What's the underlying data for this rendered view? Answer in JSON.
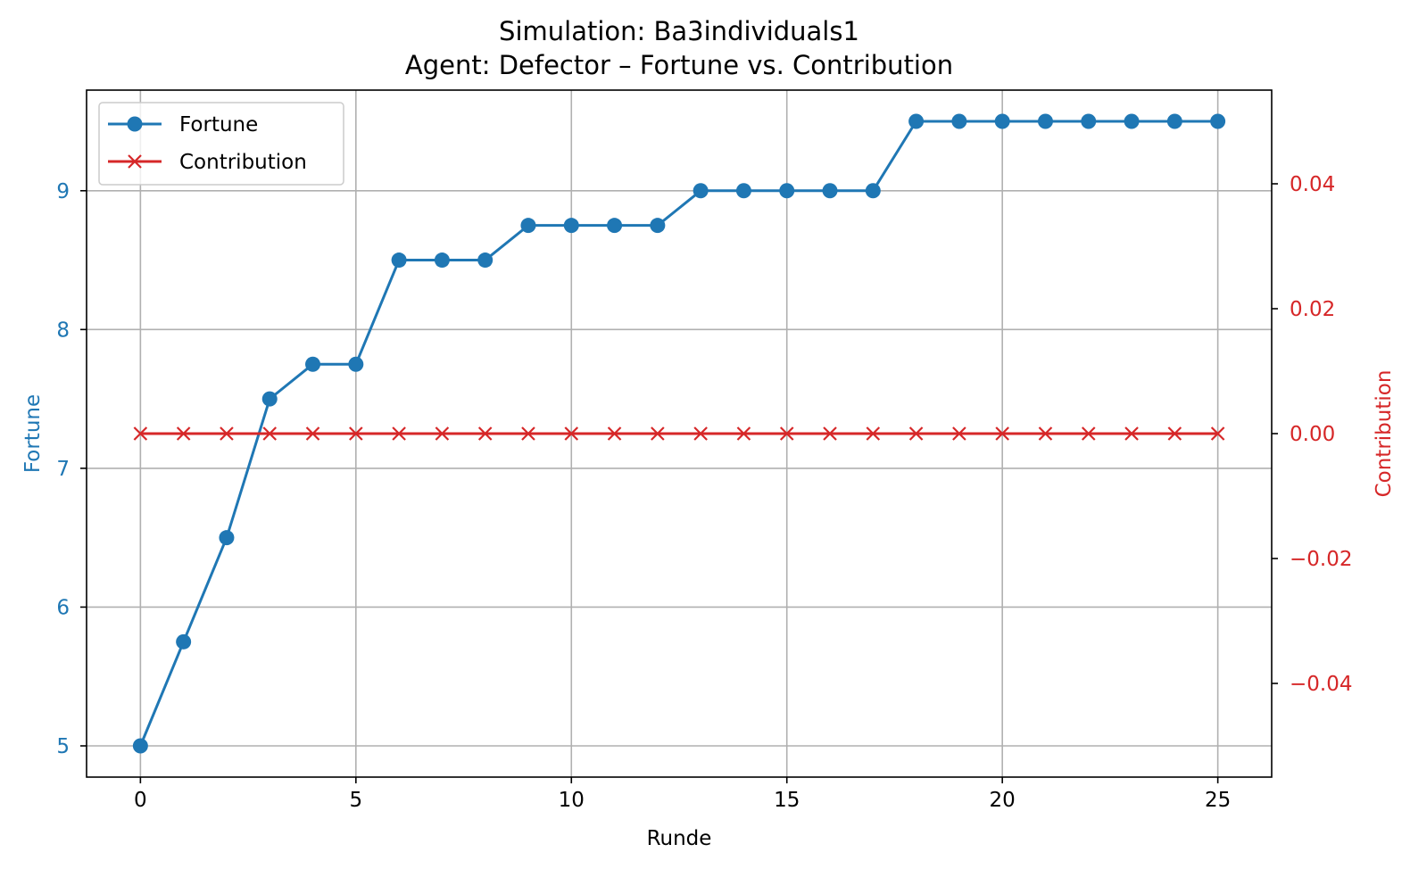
{
  "colors": {
    "fortune": "#1f77b4",
    "contribution": "#d62728",
    "grid": "#b0b0b0",
    "axis": "#000000"
  },
  "chart_data": {
    "type": "line",
    "title": "Simulation: Ba3individuals1",
    "subtitle": "Agent: Defector – Fortune vs. Contribution",
    "xlabel": "Runde",
    "ylabel_left": "Fortune",
    "ylabel_right": "Contribution",
    "xlim": [
      -1.25,
      26.25
    ],
    "ylim_left": [
      4.775,
      9.725
    ],
    "ylim_right": [
      -0.055,
      0.055
    ],
    "x_ticks": [
      0,
      5,
      10,
      15,
      20,
      25
    ],
    "x_tick_labels": [
      "0",
      "5",
      "10",
      "15",
      "20",
      "25"
    ],
    "y_left_ticks": [
      5,
      6,
      7,
      8,
      9
    ],
    "y_left_tick_labels": [
      "5",
      "6",
      "7",
      "8",
      "9"
    ],
    "y_right_ticks": [
      -0.04,
      -0.02,
      0.0,
      0.02,
      0.04
    ],
    "y_right_tick_labels": [
      "−0.04",
      "−0.02",
      "0.00",
      "0.02",
      "0.04"
    ],
    "grid": true,
    "legend_position": "top-left",
    "x": [
      0,
      1,
      2,
      3,
      4,
      5,
      6,
      7,
      8,
      9,
      10,
      11,
      12,
      13,
      14,
      15,
      16,
      17,
      18,
      19,
      20,
      21,
      22,
      23,
      24,
      25
    ],
    "series": [
      {
        "name": "Fortune",
        "axis": "left",
        "marker": "circle",
        "color": "#1f77b4",
        "values": [
          5.0,
          5.75,
          6.5,
          7.5,
          7.75,
          7.75,
          8.5,
          8.5,
          8.5,
          8.75,
          8.75,
          8.75,
          8.75,
          9.0,
          9.0,
          9.0,
          9.0,
          9.0,
          9.5,
          9.5,
          9.5,
          9.5,
          9.5,
          9.5,
          9.5,
          9.5
        ]
      },
      {
        "name": "Contribution",
        "axis": "right",
        "marker": "x",
        "color": "#d62728",
        "values": [
          0,
          0,
          0,
          0,
          0,
          0,
          0,
          0,
          0,
          0,
          0,
          0,
          0,
          0,
          0,
          0,
          0,
          0,
          0,
          0,
          0,
          0,
          0,
          0,
          0,
          0
        ]
      }
    ]
  }
}
